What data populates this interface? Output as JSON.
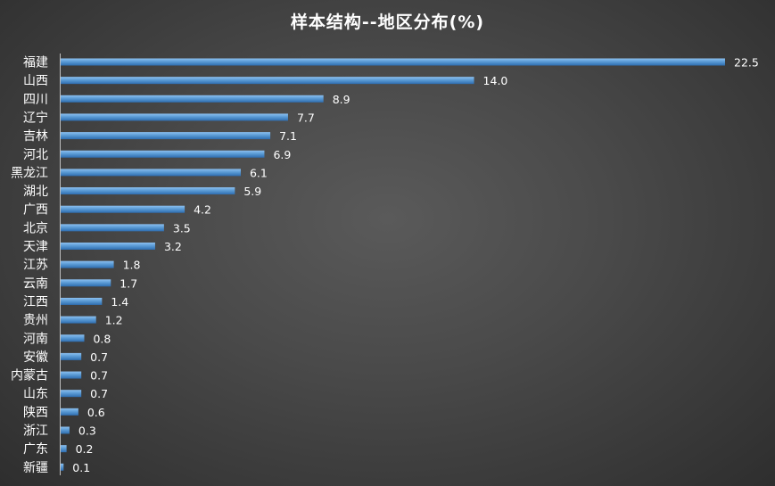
{
  "chart_data": {
    "type": "bar",
    "orientation": "horizontal",
    "title": "样本结构--地区分布(%)",
    "categories": [
      "福建",
      "山西",
      "四川",
      "辽宁",
      "吉林",
      "河北",
      "黑龙江",
      "湖北",
      "广西",
      "北京",
      "天津",
      "江苏",
      "云南",
      "江西",
      "贵州",
      "河南",
      "安徽",
      "内蒙古",
      "山东",
      "陕西",
      "浙江",
      "广东",
      "新疆"
    ],
    "values": [
      22.5,
      14.0,
      8.9,
      7.7,
      7.1,
      6.9,
      6.1,
      5.9,
      4.2,
      3.5,
      3.2,
      1.8,
      1.7,
      1.4,
      1.2,
      0.8,
      0.7,
      0.7,
      0.7,
      0.6,
      0.3,
      0.2,
      0.1
    ],
    "value_labels": [
      "22.5",
      "14.0",
      "8.9",
      "7.7",
      "7.1",
      "6.9",
      "6.1",
      "5.9",
      "4.2",
      "3.5",
      "3.2",
      "1.8",
      "1.7",
      "1.4",
      "1.2",
      "0.8",
      "0.7",
      "0.7",
      "0.7",
      "0.6",
      "0.3",
      "0.2",
      "0.1"
    ],
    "xlim": [
      0,
      22.5
    ],
    "grid": false,
    "legend": "none",
    "bar_color": "#5b9bd5",
    "bar_color_dark": "#2e6db0"
  }
}
